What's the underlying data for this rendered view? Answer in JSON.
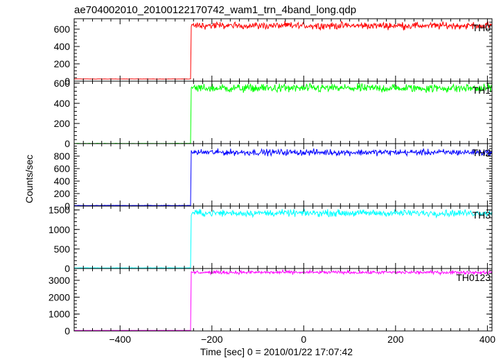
{
  "title": "ae704002010_20100122170742_wam1_trn_4band_long.qdp",
  "chart_data": {
    "type": "line",
    "title": "ae704002010_20100122170742_wam1_trn_4band_long.qdp",
    "xlabel": "Time [sec] 0 = 2010/01/22 17:07:42",
    "ylabel": "Counts/sec",
    "xlim": [
      -500,
      410
    ],
    "x_ticks": [
      -400,
      -200,
      0,
      200,
      400
    ],
    "x_tick_labels": [
      "−400",
      "−200",
      "0",
      "200",
      "400"
    ],
    "step_time": -245,
    "panels": [
      {
        "name": "TH0",
        "color": "#ff0000",
        "ylim": [
          0,
          720
        ],
        "y_ticks": [
          0,
          200,
          400,
          600
        ],
        "pre_level": 25,
        "post_level": 640,
        "noise": 28
      },
      {
        "name": "TH1",
        "color": "#00ff00",
        "ylim": [
          0,
          620
        ],
        "y_ticks": [
          0,
          200,
          400,
          600
        ],
        "pre_level": 2,
        "post_level": 550,
        "noise": 30
      },
      {
        "name": "TH2",
        "color": "#0000ff",
        "ylim": [
          0,
          1000
        ],
        "y_ticks": [
          0,
          200,
          400,
          600,
          800
        ],
        "pre_level": 10,
        "post_level": 860,
        "noise": 35
      },
      {
        "name": "TH3",
        "color": "#00ffff",
        "ylim": [
          0,
          1600
        ],
        "y_ticks": [
          0,
          500,
          1000,
          1500
        ],
        "pre_level": 15,
        "post_level": 1420,
        "noise": 60
      },
      {
        "name": "TH0123",
        "color": "#ff00ff",
        "ylim": [
          0,
          3700
        ],
        "y_ticks": [
          0,
          1000,
          2000,
          3000
        ],
        "pre_level": 30,
        "post_level": 3470,
        "noise": 70
      }
    ]
  }
}
